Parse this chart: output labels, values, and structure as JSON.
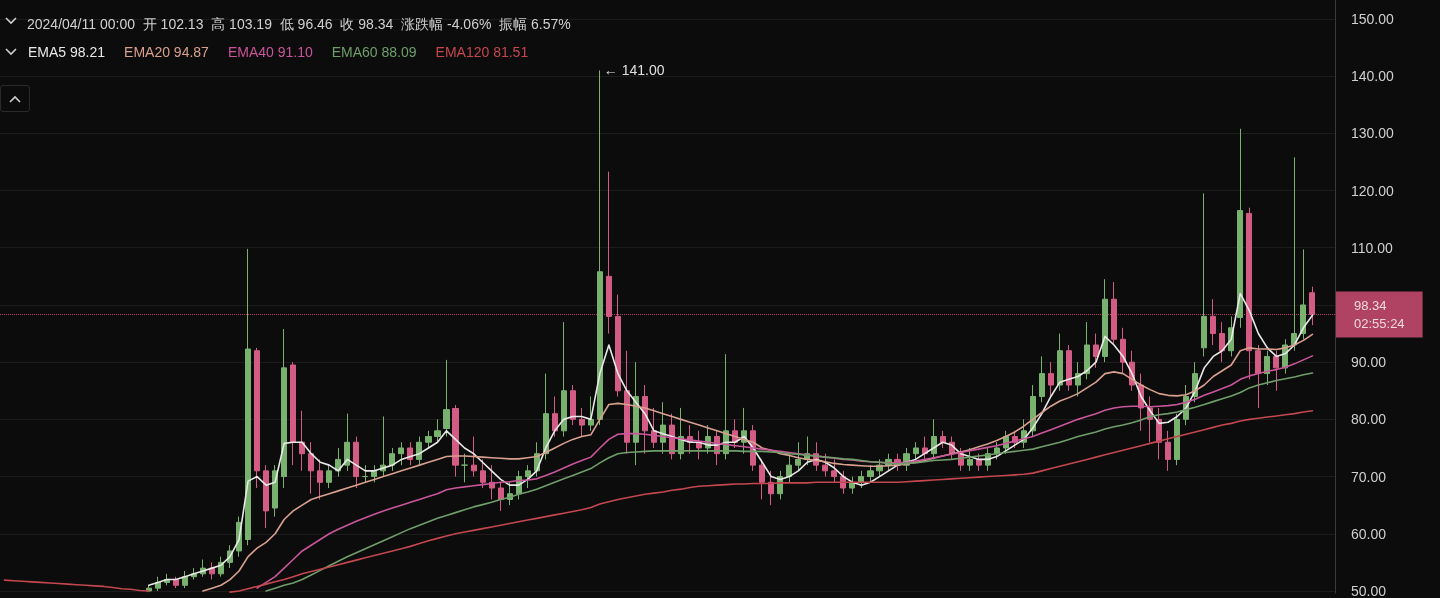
{
  "chart_data": {
    "type": "candlestick",
    "title": "2024/04/11 00:00  开 102.13  高 103.19  低 96.46  收 98.34  涨跌幅 -4.06%  振幅 6.57%",
    "categories": [
      null,
      null,
      null,
      null,
      null,
      null,
      null,
      null,
      null,
      null,
      null,
      null,
      null,
      null,
      null,
      null,
      null,
      null,
      null,
      null,
      null,
      null,
      null,
      null,
      null,
      null,
      null,
      null,
      null,
      null,
      null,
      null,
      null,
      null,
      null,
      null,
      null,
      null,
      null,
      null,
      null,
      null,
      null,
      null,
      null,
      null,
      null,
      null,
      null,
      null,
      null,
      null,
      null,
      null,
      null,
      null,
      null,
      null,
      null,
      null,
      null,
      null,
      null,
      null,
      null,
      null,
      null,
      null,
      null,
      null,
      null,
      null,
      null,
      null,
      null,
      null,
      null,
      null,
      null,
      null,
      null,
      null,
      null,
      null,
      null,
      null,
      null,
      null,
      null,
      null,
      null,
      null,
      null,
      null,
      null,
      null,
      null,
      null,
      null,
      null,
      null,
      null,
      null,
      null,
      null,
      null,
      null,
      null,
      null,
      null,
      null,
      null,
      null,
      null,
      null,
      null,
      null,
      null,
      null,
      null,
      null,
      null,
      null,
      null,
      null,
      null,
      null,
      null,
      null,
      null,
      null,
      null,
      null,
      null,
      null,
      null,
      null,
      null,
      null,
      null,
      null,
      null,
      null,
      null,
      null,
      null,
      null,
      null
    ],
    "series": [
      {
        "colors": [
          null,
          null,
          null,
          null,
          null,
          null,
          null,
          null,
          null,
          null,
          null,
          null,
          null,
          null,
          null,
          null,
          "#79b26f",
          "#79b26f",
          "#79b26f",
          "#d35c84",
          "#79b26f",
          "#79b26f",
          "#79b26f",
          "#d35c84",
          "#79b26f",
          "#79b26f",
          "#79b26f",
          "#79b26f",
          "#d35c84",
          "#d35c84",
          "#79b26f",
          "#79b26f",
          "#d35c84",
          "#d35c84",
          "#d35c84",
          "#d35c84",
          "#79b26f",
          "#79b26f",
          "#79b26f",
          "#d35c84",
          "#79b26f",
          "#79b26f",
          "#79b26f",
          "#79b26f",
          "#79b26f",
          "#d35c84",
          "#79b26f",
          "#79b26f",
          "#79b26f",
          "#79b26f",
          "#d35c84",
          "#79b26f",
          "#d35c84",
          "#d35c84",
          "#d35c84",
          "#d35c84",
          "#79b26f",
          "#79b26f",
          "#79b26f",
          "#79b26f",
          "#79b26f",
          "#d35c84",
          "#79b26f",
          "#d35c84",
          "#d35c84",
          "#79b26f",
          "#79b26f",
          "#d35c84",
          "#d35c84",
          "#d35c84",
          "#79b26f",
          "#d35c84",
          "#d35c84",
          "#79b26f",
          "#d35c84",
          "#79b26f",
          "#d35c84",
          "#d35c84",
          "#79b26f",
          "#d35c84",
          "#79b26f",
          "#d35c84",
          "#79b26f",
          "#d35c84",
          "#d35c84",
          "#d35c84",
          "#79b26f",
          "#79b26f",
          "#79b26f",
          "#79b26f",
          "#d35c84",
          "#d35c84",
          "#d35c84",
          "#d35c84",
          "#79b26f",
          "#79b26f",
          "#79b26f",
          "#79b26f",
          "#79b26f",
          "#d35c84",
          "#79b26f",
          "#79b26f",
          "#d35c84",
          "#79b26f",
          "#d35c84",
          "#d35c84",
          "#d35c84",
          "#79b26f",
          "#d35c84",
          "#79b26f",
          "#79b26f",
          "#79b26f",
          "#d35c84",
          "#79b26f",
          "#79b26f",
          "#79b26f",
          "#d35c84",
          "#79b26f",
          "#d35c84",
          "#79b26f",
          "#79b26f",
          "#d35c84",
          "#79b26f",
          "#d35c84",
          "#d35c84",
          "#d35c84",
          "#d35c84",
          "#d35c84",
          "#d35c84",
          "#d35c84",
          "#79b26f",
          "#79b26f",
          "#79b26f",
          "#79b26f",
          "#d35c84",
          "#d35c84",
          "#79b26f",
          "#79b26f",
          "#d35c84",
          "#d35c84",
          "#79b26f",
          "#d35c84",
          "#79b26f",
          "#79b26f",
          "#79b26f",
          "#d35c84",
          null,
          null
        ],
        "ohlc": [
          null,
          null,
          null,
          null,
          null,
          null,
          null,
          null,
          null,
          null,
          null,
          null,
          null,
          null,
          null,
          null,
          [
            50,
            51,
            49.8,
            50.5
          ],
          [
            50.5,
            52.5,
            50,
            51.5
          ],
          [
            51.5,
            53,
            51,
            52
          ],
          [
            52,
            52.5,
            50.5,
            51
          ],
          [
            51,
            53.5,
            50.5,
            52.5
          ],
          [
            52.5,
            54,
            52,
            53
          ],
          [
            53,
            55.5,
            52.5,
            54
          ],
          [
            54,
            55,
            52,
            53
          ],
          [
            53,
            56,
            52.5,
            55
          ],
          [
            55,
            58,
            54,
            57
          ],
          [
            57,
            63,
            56,
            62
          ],
          [
            59,
            109.8,
            58,
            92.3
          ],
          [
            92,
            92.5,
            68,
            71
          ],
          [
            71,
            72,
            61,
            64
          ],
          [
            64.5,
            72,
            63,
            71
          ],
          [
            70,
            95.8,
            68,
            89
          ],
          [
            89.5,
            90,
            72,
            76
          ],
          [
            76,
            81.5,
            71,
            74
          ],
          [
            74,
            76,
            67,
            71
          ],
          [
            71,
            73,
            66,
            69
          ],
          [
            69,
            72,
            68,
            71
          ],
          [
            71,
            75,
            70,
            73
          ],
          [
            72,
            81,
            71,
            76
          ],
          [
            76,
            77,
            68,
            70
          ],
          [
            70,
            72,
            69,
            70
          ],
          [
            70,
            72,
            69,
            71
          ],
          [
            71,
            80.5,
            70,
            72
          ],
          [
            72,
            75,
            71,
            74
          ],
          [
            74,
            76,
            72,
            75
          ],
          [
            75,
            76,
            72,
            73
          ],
          [
            73,
            77,
            72,
            76
          ],
          [
            76,
            78,
            75,
            77
          ],
          [
            77,
            80,
            76,
            78
          ],
          [
            78.4,
            90.4,
            77,
            81.7
          ],
          [
            81.9,
            82.5,
            70,
            72
          ],
          [
            72,
            74,
            69,
            72
          ],
          [
            72,
            77,
            70,
            71
          ],
          [
            71,
            73,
            68,
            69
          ],
          [
            69,
            72,
            66,
            68
          ],
          [
            68,
            69,
            64,
            66
          ],
          [
            66,
            69,
            65,
            67
          ],
          [
            67,
            71,
            66,
            70
          ],
          [
            70,
            72,
            68,
            71
          ],
          [
            71,
            76,
            70,
            74
          ],
          [
            74,
            88,
            73,
            81
          ],
          [
            81,
            84,
            77,
            78
          ],
          [
            78,
            97,
            77,
            85
          ],
          [
            85,
            86,
            79,
            80
          ],
          [
            80,
            82,
            77,
            79
          ],
          [
            79,
            84,
            78,
            80
          ],
          [
            80,
            141,
            79,
            105.8
          ],
          [
            105,
            123.3,
            95,
            98
          ],
          [
            98,
            101.8,
            84,
            85
          ],
          [
            85,
            92,
            74,
            76
          ],
          [
            76,
            90,
            72,
            84
          ],
          [
            84,
            86,
            74,
            78
          ],
          [
            78,
            82,
            75,
            76
          ],
          [
            76,
            83,
            74,
            79
          ],
          [
            79,
            81,
            73,
            74
          ],
          [
            74,
            82,
            73,
            77
          ],
          [
            77,
            79,
            74,
            76
          ],
          [
            76,
            78,
            73,
            75
          ],
          [
            75,
            79,
            74,
            77
          ],
          [
            77,
            78,
            72,
            74
          ],
          [
            74,
            91.4,
            73,
            78
          ],
          [
            78,
            80,
            75,
            76
          ],
          [
            76,
            82,
            74,
            78
          ],
          [
            78,
            79,
            71,
            72
          ],
          [
            72,
            73,
            66,
            69
          ],
          [
            69,
            71,
            65,
            67
          ],
          [
            67,
            71,
            66,
            70
          ],
          [
            70,
            74,
            69,
            72
          ],
          [
            72,
            76,
            71,
            73
          ],
          [
            73,
            77,
            72,
            74
          ],
          [
            74,
            76,
            71,
            72
          ],
          [
            72,
            74,
            70,
            71
          ],
          [
            71,
            73,
            69,
            70
          ],
          [
            70,
            71,
            67,
            68
          ],
          [
            68,
            70,
            67,
            69
          ],
          [
            69,
            71,
            68,
            70
          ],
          [
            70,
            72,
            69,
            71
          ],
          [
            71,
            73,
            70,
            72
          ],
          [
            72,
            74,
            71,
            73
          ],
          [
            73,
            74,
            71,
            72
          ],
          [
            72,
            75,
            71,
            74
          ],
          [
            74,
            76,
            73,
            75
          ],
          [
            75,
            77,
            73,
            74
          ],
          [
            74,
            80,
            73,
            77
          ],
          [
            77,
            78,
            75,
            76
          ],
          [
            76,
            77,
            73,
            74
          ],
          [
            74,
            75,
            71,
            72
          ],
          [
            72,
            75,
            71,
            73
          ],
          [
            73,
            74,
            71,
            72
          ],
          [
            72,
            75,
            71,
            74
          ],
          [
            74,
            76,
            73,
            75
          ],
          [
            75,
            78,
            74,
            77
          ],
          [
            77,
            78,
            75,
            76
          ],
          [
            76,
            80,
            75,
            78
          ],
          [
            78,
            86,
            77,
            84
          ],
          [
            84,
            91,
            83,
            88
          ],
          [
            88,
            90,
            84,
            86
          ],
          [
            86,
            95,
            85,
            92
          ],
          [
            92,
            93,
            85,
            86
          ],
          [
            86,
            90,
            84,
            88
          ],
          [
            88,
            97,
            87,
            93
          ],
          [
            93,
            95,
            89,
            91
          ],
          [
            91,
            104.5,
            90,
            101
          ],
          [
            101,
            104,
            93,
            94
          ],
          [
            94,
            96,
            88,
            90
          ],
          [
            90,
            92,
            85,
            86
          ],
          [
            86,
            88,
            78,
            82
          ],
          [
            82,
            84,
            76,
            80
          ],
          [
            80,
            82,
            73,
            76
          ],
          [
            76,
            78,
            71,
            73
          ],
          [
            73,
            81,
            72,
            80
          ],
          [
            80,
            86,
            79,
            84
          ],
          [
            84,
            90,
            83,
            88
          ],
          [
            92.5,
            119.5,
            91,
            98
          ],
          [
            98,
            101,
            93,
            95
          ],
          [
            95,
            97,
            90,
            92
          ],
          [
            92,
            98,
            91,
            96
          ],
          [
            97.8,
            130.8,
            96,
            116.5
          ],
          [
            116,
            117,
            87,
            92
          ],
          [
            92,
            93,
            82,
            88
          ],
          [
            88,
            92,
            86,
            91
          ],
          [
            91,
            92,
            85,
            89
          ],
          [
            89,
            94,
            88,
            93
          ],
          [
            93,
            125.8,
            92,
            95
          ],
          [
            95,
            109.7,
            94,
            100
          ],
          [
            102.13,
            103.19,
            96.46,
            98.34
          ],
          null,
          null
        ]
      },
      {
        "type": "line",
        "name": "EMA5 98.21",
        "color": "#e8e8e8",
        "values": [
          null,
          null,
          null,
          null,
          null,
          null,
          null,
          null,
          null,
          null,
          null,
          null,
          null,
          null,
          null,
          null,
          51,
          51.5,
          52,
          52,
          52.5,
          53,
          53.5,
          54,
          54.5,
          56,
          59,
          69.2,
          70,
          68.5,
          69,
          75.8,
          76,
          76,
          74,
          72.5,
          72,
          71,
          73,
          72,
          71,
          71,
          71.5,
          72,
          73,
          73.5,
          74,
          75,
          76,
          78,
          76.5,
          75,
          74,
          72.5,
          71,
          69.5,
          68.5,
          68.5,
          69.5,
          71,
          75,
          78,
          80,
          80.5,
          80.5,
          80,
          88,
          93,
          88,
          85,
          83,
          81,
          78,
          77.5,
          77,
          76.5,
          76,
          76,
          75.5,
          75.5,
          76,
          76,
          77,
          75,
          72.5,
          70,
          69.5,
          70,
          71,
          72.5,
          73,
          72.5,
          71.5,
          70,
          69,
          68.5,
          69,
          70,
          71,
          72,
          72.5,
          73,
          74,
          75,
          76,
          75.5,
          74,
          73.5,
          73,
          73,
          73.5,
          74.5,
          75.5,
          76.5,
          78.5,
          81,
          84,
          86.5,
          87,
          87.5,
          88.5,
          90,
          94.5,
          93,
          91,
          88,
          84,
          81.5,
          79.3,
          79.5,
          80.5,
          82,
          85,
          89,
          91,
          92,
          94,
          102,
          99,
          95,
          92.5,
          91,
          91.5,
          93,
          96,
          98.21,
          null,
          null
        ]
      },
      {
        "type": "line",
        "name": "EMA20 94.87",
        "color": "#d9a08f",
        "values": [
          null,
          null,
          null,
          null,
          null,
          null,
          null,
          null,
          null,
          null,
          null,
          null,
          null,
          null,
          null,
          null,
          null,
          null,
          null,
          null,
          null,
          null,
          50,
          50.5,
          51,
          52,
          53.5,
          56,
          57.5,
          58.5,
          60,
          62.5,
          64,
          65,
          66,
          66.5,
          67,
          67.5,
          68,
          68.5,
          69,
          69.5,
          70,
          70.5,
          71,
          71.5,
          72,
          72.5,
          73,
          73.5,
          73.6,
          73.6,
          73.5,
          73.4,
          73.3,
          73.2,
          73.1,
          73.1,
          73.3,
          73.5,
          74.2,
          75,
          75.8,
          76.5,
          77,
          77.3,
          80,
          82.6,
          82.8,
          82.6,
          82.3,
          82,
          81.5,
          81,
          80.5,
          80,
          79.5,
          79,
          78.5,
          78,
          77.5,
          77,
          76.5,
          76,
          75,
          74.6,
          74,
          73.7,
          73.3,
          73,
          72.8,
          72.6,
          72.3,
          72.1,
          72,
          71.9,
          71.8,
          71.8,
          71.9,
          72,
          72.2,
          72.5,
          72.8,
          73.2,
          73.6,
          74,
          74.3,
          74.7,
          75.2,
          75.7,
          76.3,
          77,
          77.8,
          78.8,
          80,
          81.2,
          82.3,
          83.2,
          83.8,
          84.5,
          85.5,
          86.5,
          88,
          88.3,
          88,
          87,
          86,
          85.2,
          84.5,
          84.2,
          84.1,
          84.3,
          85,
          86,
          87.5,
          88.5,
          89.5,
          92,
          92.5,
          92.3,
          92.3,
          92.2,
          92.5,
          93,
          93.8,
          94.87,
          null,
          null
        ]
      },
      {
        "type": "line",
        "name": "EMA40 91.10",
        "color": "#c9559a",
        "values": [
          null,
          null,
          null,
          null,
          null,
          null,
          null,
          null,
          null,
          null,
          null,
          null,
          null,
          null,
          null,
          null,
          null,
          null,
          null,
          null,
          null,
          null,
          null,
          null,
          null,
          null,
          null,
          null,
          50.5,
          51.5,
          52.5,
          54,
          55.5,
          57,
          58,
          59,
          60,
          60.8,
          61.5,
          62.2,
          62.8,
          63.4,
          64,
          64.5,
          65,
          65.5,
          66,
          66.5,
          67,
          67.7,
          68,
          68.2,
          68.4,
          68.6,
          68.8,
          69,
          69.1,
          69.3,
          69.4,
          69.6,
          70.2,
          70.8,
          71.5,
          72.2,
          72.8,
          73.4,
          75,
          76.5,
          77.4,
          77.5,
          77.5,
          77.4,
          77.2,
          77,
          76.8,
          76.6,
          76.4,
          76.2,
          76,
          75.8,
          75.6,
          75.4,
          75.2,
          75,
          74.8,
          74.6,
          74.4,
          74.2,
          74,
          73.8,
          73.6,
          73.4,
          73.2,
          73,
          72.9,
          72.7,
          72.6,
          72.5,
          72.4,
          72.4,
          72.5,
          72.7,
          73,
          73.3,
          73.6,
          73.9,
          74.2,
          74.5,
          74.8,
          75.1,
          75.4,
          75.8,
          76.2,
          76.6,
          77,
          77.6,
          78.2,
          78.8,
          79.4,
          80,
          80.5,
          81,
          81.6,
          82,
          82.2,
          82.3,
          82.3,
          82.2,
          82.3,
          82.4,
          82.6,
          83,
          83.5,
          84.2,
          84.8,
          85.4,
          86,
          87,
          87.6,
          88,
          88.4,
          88.7,
          89.1,
          89.7,
          90.4,
          91.1,
          null,
          null
        ]
      },
      {
        "type": "line",
        "name": "EMA60 88.09",
        "color": "#6f9e6a",
        "values": [
          null,
          null,
          null,
          null,
          null,
          null,
          null,
          null,
          null,
          null,
          null,
          null,
          null,
          null,
          null,
          null,
          null,
          null,
          null,
          null,
          null,
          null,
          null,
          null,
          null,
          null,
          null,
          null,
          null,
          50,
          50.5,
          51,
          51.4,
          52,
          52.8,
          53.6,
          54.4,
          55.2,
          56,
          56.7,
          57.4,
          58.1,
          58.8,
          59.5,
          60.2,
          60.9,
          61.5,
          62.1,
          62.7,
          63.2,
          63.7,
          64.2,
          64.7,
          65.1,
          65.5,
          66,
          66.4,
          66.9,
          67.3,
          67.8,
          68.4,
          69,
          69.6,
          70.2,
          70.8,
          71.4,
          72.4,
          73.3,
          74,
          74.2,
          74.3,
          74.4,
          74.5,
          74.5,
          74.5,
          74.5,
          74.5,
          74.5,
          74.5,
          74.5,
          74.5,
          74.5,
          74.4,
          74.4,
          74.4,
          74.3,
          74.2,
          74,
          73.9,
          73.7,
          73.6,
          73.4,
          73.3,
          73.1,
          73,
          72.8,
          72.6,
          72.5,
          72.3,
          72.2,
          72.3,
          72.4,
          72.6,
          72.8,
          72.9,
          73,
          73.2,
          73.4,
          73.6,
          73.8,
          74,
          74.2,
          74.4,
          74.6,
          74.8,
          75.2,
          75.6,
          76,
          76.5,
          77,
          77.4,
          77.8,
          78.3,
          78.7,
          79,
          79.4,
          79.9,
          80.5,
          80.8,
          81,
          81.3,
          81.7,
          82.1,
          82.6,
          83.1,
          83.6,
          84.1,
          84.7,
          85.5,
          86,
          86.4,
          86.8,
          87.1,
          87.4,
          87.8,
          88.09,
          null,
          null
        ]
      },
      {
        "type": "line",
        "name": "EMA120 81.51",
        "color": "#c4474f",
        "values": [
          51.9,
          51.8,
          51.7,
          51.6,
          51.5,
          51.4,
          51.3,
          51.2,
          51.1,
          51,
          50.9,
          50.8,
          50.6,
          50.4,
          50.3,
          50.1,
          50,
          null,
          null,
          null,
          null,
          null,
          null,
          null,
          null,
          49.8,
          50,
          50.4,
          50.8,
          51.2,
          51.6,
          52,
          52.5,
          53,
          53.4,
          53.8,
          54.2,
          54.6,
          55,
          55.4,
          55.8,
          56.2,
          56.6,
          57,
          57.4,
          57.8,
          58.3,
          58.8,
          59.2,
          59.6,
          60,
          60.3,
          60.6,
          60.9,
          61.2,
          61.5,
          61.8,
          62.1,
          62.4,
          62.7,
          63,
          63.3,
          63.6,
          63.9,
          64.2,
          64.6,
          65.2,
          65.6,
          66,
          66.3,
          66.6,
          66.9,
          67.1,
          67.3,
          67.6,
          67.8,
          68.1,
          68.3,
          68.4,
          68.5,
          68.6,
          68.7,
          68.7,
          68.8,
          68.8,
          68.8,
          68.9,
          68.9,
          68.9,
          68.9,
          69,
          69,
          69,
          69,
          69,
          69,
          69,
          69,
          69,
          69,
          69.1,
          69.2,
          69.3,
          69.4,
          69.5,
          69.6,
          69.7,
          69.8,
          69.9,
          70,
          70.1,
          70.2,
          70.3,
          70.4,
          70.6,
          71,
          71.4,
          71.8,
          72.2,
          72.6,
          73,
          73.4,
          73.8,
          74.2,
          74.6,
          75,
          75.4,
          75.8,
          76.2,
          76.6,
          77,
          77.4,
          77.8,
          78.2,
          78.6,
          79,
          79.3,
          79.7,
          80,
          80.2,
          80.4,
          80.6,
          80.8,
          81,
          81.3,
          81.51,
          null,
          null
        ]
      }
    ],
    "ylim": [
      49.6,
      153.3
    ],
    "yticks": [
      {
        "value": 50,
        "label": "50.00"
      },
      {
        "value": 60,
        "label": "60.00"
      },
      {
        "value": 70,
        "label": "70.00"
      },
      {
        "value": 80,
        "label": "80.00"
      },
      {
        "value": 90,
        "label": "90.00"
      },
      {
        "value": 100,
        "label": null
      },
      {
        "value": 110,
        "label": "110.00"
      },
      {
        "value": 120,
        "label": "120.00"
      },
      {
        "value": 130,
        "label": "130.00"
      },
      {
        "value": 140,
        "label": "140.00"
      },
      {
        "value": 150,
        "label": "150.00"
      }
    ],
    "ref_lines": [
      {
        "axis": "y",
        "value": 98.34,
        "label": "98.34\n02:55:24",
        "color": "#d9507a",
        "line_style": "dotted"
      }
    ],
    "annotations": [
      "← 141.00"
    ],
    "grid": "y",
    "legend": "top left",
    "tick_labels": "y",
    "marker": "none",
    "line_style": "solid"
  }
}
